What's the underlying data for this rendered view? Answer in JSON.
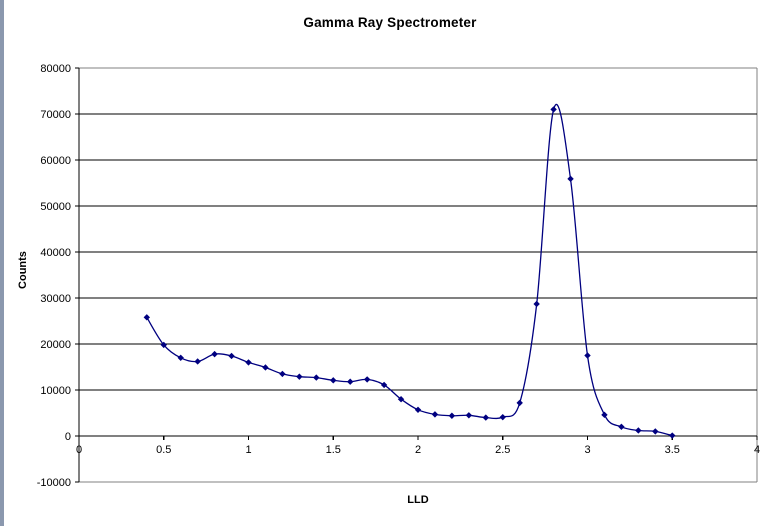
{
  "window": {
    "edge_strip_color": "#8b98ae"
  },
  "chart_data": {
    "type": "line",
    "title": "Gamma Ray Spectrometer",
    "xlabel": "LLD",
    "ylabel": "Counts",
    "smooth": true,
    "marker": "diamond",
    "legend": "none",
    "grid": "horizontal-major",
    "line_color": "#000080",
    "gridline_color": "#000000",
    "axis_color": "#000000",
    "plot_border_color": "#808080",
    "xlim": [
      0,
      4
    ],
    "ylim": [
      -10000,
      80000
    ],
    "x_ticks": [
      0,
      0.5,
      1,
      1.5,
      2,
      2.5,
      3,
      3.5,
      4
    ],
    "x_tick_labels": [
      "0",
      "0.5",
      "1",
      "1.5",
      "2",
      "2.5",
      "3",
      "3.5",
      "4"
    ],
    "y_ticks": [
      -10000,
      0,
      10000,
      20000,
      30000,
      40000,
      50000,
      60000,
      70000,
      80000
    ],
    "y_tick_labels": [
      "-10000",
      "0",
      "10000",
      "20000",
      "30000",
      "40000",
      "50000",
      "60000",
      "70000",
      "80000"
    ],
    "x": [
      0.4,
      0.5,
      0.6,
      0.7,
      0.8,
      0.9,
      1.0,
      1.1,
      1.2,
      1.3,
      1.4,
      1.5,
      1.6,
      1.7,
      1.8,
      1.9,
      2.0,
      2.1,
      2.2,
      2.3,
      2.4,
      2.5,
      2.6,
      2.7,
      2.8,
      2.9,
      3.0,
      3.1,
      3.2,
      3.3,
      3.4,
      3.5
    ],
    "series": [
      {
        "name": "Counts",
        "values": [
          25800,
          19800,
          17000,
          16200,
          17800,
          17400,
          16000,
          14900,
          13500,
          12900,
          12700,
          12100,
          11800,
          12300,
          11100,
          8000,
          5700,
          4700,
          4400,
          4500,
          4000,
          4100,
          7200,
          28700,
          71000,
          55900,
          17500,
          4600,
          2000,
          1200,
          1000,
          100
        ]
      }
    ]
  }
}
